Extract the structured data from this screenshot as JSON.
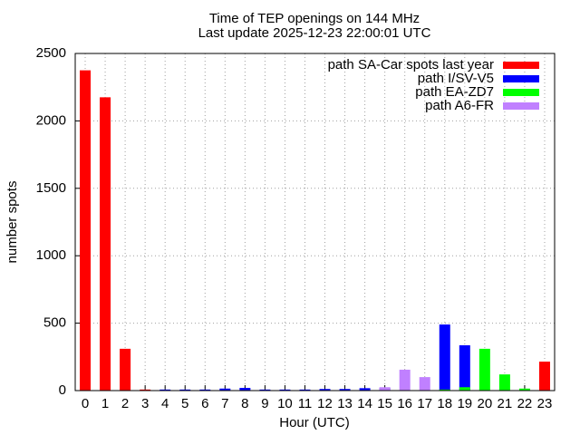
{
  "chart_data": {
    "type": "bar",
    "title": "Time of TEP openings on 144 MHz",
    "subtitle": "Last update 2025-12-23 22:00:01 UTC",
    "xlabel": "Hour (UTC)",
    "ylabel": "number spots",
    "categories": [
      "0",
      "1",
      "2",
      "3",
      "4",
      "5",
      "6",
      "7",
      "8",
      "9",
      "10",
      "11",
      "12",
      "13",
      "14",
      "15",
      "16",
      "17",
      "18",
      "19",
      "20",
      "21",
      "22",
      "23"
    ],
    "series": [
      {
        "name": "path SA-Car spots last year",
        "color": "#ff0000",
        "values": [
          2375,
          2175,
          310,
          8,
          0,
          0,
          0,
          0,
          0,
          0,
          0,
          0,
          0,
          0,
          0,
          0,
          0,
          0,
          0,
          0,
          0,
          0,
          0,
          215
        ]
      },
      {
        "name": "path I/SV-V5",
        "color": "#0000ff",
        "values": [
          0,
          0,
          0,
          0,
          8,
          8,
          8,
          15,
          20,
          8,
          8,
          8,
          12,
          12,
          18,
          20,
          0,
          0,
          490,
          336,
          0,
          0,
          0,
          0
        ]
      },
      {
        "name": "path EA-ZD7",
        "color": "#00ff00",
        "values": [
          0,
          0,
          0,
          0,
          0,
          0,
          0,
          0,
          0,
          0,
          0,
          0,
          0,
          0,
          0,
          0,
          0,
          0,
          8,
          25,
          310,
          120,
          15,
          0
        ]
      },
      {
        "name": "path A6-FR",
        "color": "#c080ff",
        "values": [
          0,
          0,
          0,
          0,
          0,
          0,
          0,
          0,
          0,
          0,
          0,
          0,
          0,
          0,
          0,
          25,
          155,
          100,
          0,
          0,
          0,
          0,
          0,
          0
        ]
      }
    ],
    "ylim": [
      0,
      2500
    ],
    "yticks": [
      0,
      500,
      1000,
      1500,
      2000,
      2500
    ],
    "grid": true,
    "legend": "top-right"
  }
}
